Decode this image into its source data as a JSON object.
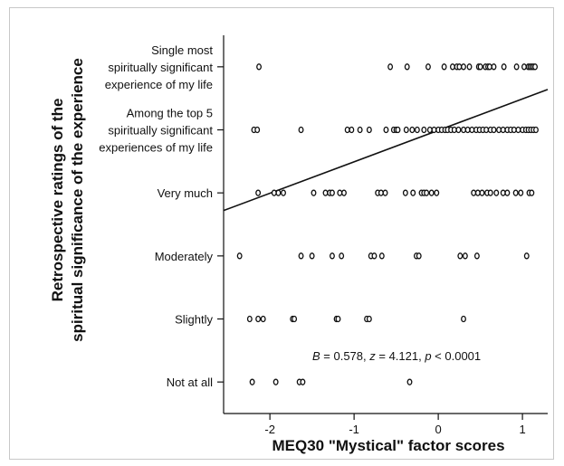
{
  "chart_data": {
    "type": "scatter",
    "xlabel": "MEQ30 \"Mystical\" factor scores",
    "ylabel_lines": [
      "Retrospective ratings of the",
      "spiritual significance of the experience"
    ],
    "xlim": [
      -2.55,
      1.3
    ],
    "ylim": [
      0.5,
      6.5
    ],
    "x_ticks": [
      -2,
      -1,
      0,
      1
    ],
    "x_tick_labels": [
      "-2",
      "-1",
      "0",
      "1"
    ],
    "y_ticks": [
      1,
      2,
      3,
      4,
      5,
      6
    ],
    "y_tick_labels": [
      [
        "Not at all"
      ],
      [
        "Slightly"
      ],
      [
        "Moderately"
      ],
      [
        "Very much"
      ],
      [
        "Among the top 5",
        "spiritually significant",
        "experiences of my life"
      ],
      [
        "Single most",
        "spiritually significant",
        "experience of my life"
      ]
    ],
    "grid": false,
    "annotation": {
      "B_label": "B",
      "B_value": " = 0.578, ",
      "z_label": "z",
      "z_value": " = 4.121, ",
      "p_label": "p",
      "p_value": " < 0.0001"
    },
    "regression_line": {
      "x": [
        -2.55,
        1.3
      ],
      "y": [
        3.72,
        5.64
      ]
    },
    "series": [
      {
        "y": 6,
        "x": [
          -2.13,
          -0.57,
          -0.37,
          -0.12,
          0.07,
          0.17,
          0.22,
          0.25,
          0.3,
          0.37,
          0.48,
          0.5,
          0.56,
          0.59,
          0.61,
          0.66,
          0.78,
          0.93,
          1.02,
          1.07,
          1.09,
          1.11,
          1.13,
          1.15
        ]
      },
      {
        "y": 5,
        "x": [
          -2.19,
          -2.15,
          -1.63,
          -1.08,
          -1.03,
          -0.93,
          -0.82,
          -0.62,
          -0.53,
          -0.5,
          -0.48,
          -0.38,
          -0.31,
          -0.25,
          -0.17,
          -0.1,
          -0.05,
          0.0,
          0.04,
          0.08,
          0.11,
          0.15,
          0.19,
          0.24,
          0.3,
          0.35,
          0.4,
          0.45,
          0.49,
          0.53,
          0.57,
          0.62,
          0.66,
          0.72,
          0.77,
          0.82,
          0.86,
          0.9,
          0.95,
          1.0,
          1.04,
          1.07,
          1.1,
          1.13,
          1.16
        ]
      },
      {
        "y": 4,
        "x": [
          -2.14,
          -1.95,
          -1.9,
          -1.84,
          -1.48,
          -1.34,
          -1.29,
          -1.26,
          -1.17,
          -1.12,
          -0.72,
          -0.68,
          -0.63,
          -0.39,
          -0.3,
          -0.2,
          -0.17,
          -0.14,
          -0.08,
          -0.02,
          0.42,
          0.47,
          0.52,
          0.58,
          0.62,
          0.69,
          0.77,
          0.82,
          0.92,
          0.98,
          1.08,
          1.11
        ]
      },
      {
        "y": 3,
        "x": [
          -2.36,
          -1.63,
          -1.5,
          -1.26,
          -1.15,
          -0.8,
          -0.76,
          -0.67,
          -0.26,
          -0.23,
          0.26,
          0.32,
          0.46,
          1.05
        ]
      },
      {
        "y": 2,
        "x": [
          -2.24,
          -2.14,
          -2.08,
          -1.73,
          -1.71,
          -1.21,
          -1.19,
          -0.85,
          -0.82,
          0.3
        ]
      },
      {
        "y": 1,
        "x": [
          -2.21,
          -1.93,
          -1.65,
          -1.61,
          -0.34
        ]
      }
    ]
  }
}
